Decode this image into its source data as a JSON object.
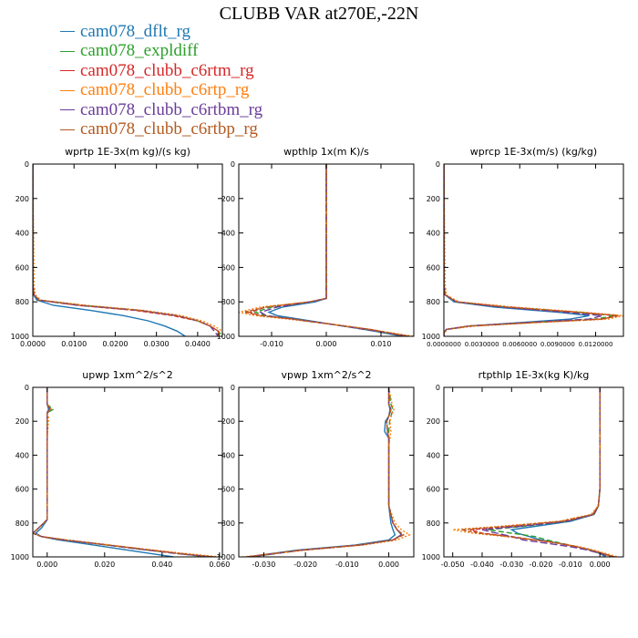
{
  "figure": {
    "title": "CLUBB VAR at270E,-22N"
  },
  "legend": [
    {
      "name": "cam078_dflt_rg",
      "color": "#1f77b4"
    },
    {
      "name": "cam078_expldiff",
      "color": "#2ca02c"
    },
    {
      "name": "cam078_clubb_c6rtm_rg",
      "color": "#d62728"
    },
    {
      "name": "cam078_clubb_c6rtp_rg",
      "color": "#ff7f0e"
    },
    {
      "name": "cam078_clubb_c6rtbm_rg",
      "color": "#6a3d9a"
    },
    {
      "name": "cam078_clubb_c6rtbp_rg",
      "color": "#b35a1f"
    }
  ],
  "chart_data": [
    {
      "type": "line",
      "title": "wprtp  1E-3x(m kg)/(s kg)",
      "xlim": [
        0,
        0.046
      ],
      "ylim": [
        1000,
        0
      ],
      "xticks": [
        0,
        0.01,
        0.02,
        0.03,
        0.04
      ],
      "xtick_labels": [
        "0.0000",
        "0.0100",
        "0.0200",
        "0.0300",
        "0.0400"
      ],
      "yticks": [
        0,
        200,
        400,
        600,
        800,
        1000
      ],
      "y": [
        0,
        700,
        760,
        790,
        820,
        850,
        880,
        910,
        940,
        970,
        1000
      ],
      "series": [
        {
          "name": "cam078_dflt_rg",
          "values": [
            0,
            0,
            0.0002,
            0.001,
            0.005,
            0.014,
            0.022,
            0.028,
            0.032,
            0.035,
            0.037
          ]
        },
        {
          "name": "cam078_expldiff",
          "values": [
            0,
            0,
            0.0003,
            0.0015,
            0.012,
            0.026,
            0.035,
            0.04,
            0.043,
            0.045,
            0.046
          ]
        },
        {
          "name": "cam078_clubb_c6rtm_rg",
          "values": [
            0,
            0,
            0.0003,
            0.0015,
            0.011,
            0.025,
            0.034,
            0.04,
            0.043,
            0.045,
            0.045
          ]
        },
        {
          "name": "cam078_clubb_c6rtp_rg",
          "values": [
            0,
            0.0003,
            0.0006,
            0.002,
            0.013,
            0.027,
            0.036,
            0.041,
            0.044,
            0.046,
            0.046
          ]
        },
        {
          "name": "cam078_clubb_c6rtbm_rg",
          "values": [
            0,
            0,
            0.0003,
            0.0015,
            0.011,
            0.026,
            0.035,
            0.04,
            0.043,
            0.044,
            0.045
          ]
        },
        {
          "name": "cam078_clubb_c6rtbp_rg",
          "values": [
            0,
            0,
            0.0003,
            0.0015,
            0.012,
            0.026,
            0.035,
            0.04,
            0.043,
            0.045,
            0.045
          ]
        }
      ]
    },
    {
      "type": "line",
      "title": "wpthlp  1x(m K)/s",
      "xlim": [
        -0.016,
        0.016
      ],
      "ylim": [
        1000,
        0
      ],
      "xticks": [
        -0.01,
        0,
        0.01
      ],
      "xtick_labels": [
        "-0.010",
        "0.000",
        "0.010"
      ],
      "yticks": [
        0,
        200,
        400,
        600,
        800,
        1000
      ],
      "y": [
        0,
        700,
        780,
        800,
        830,
        860,
        880,
        900,
        930,
        960,
        1000
      ],
      "series": [
        {
          "name": "cam078_dflt_rg",
          "values": [
            0,
            0,
            0,
            -0.002,
            -0.008,
            -0.0105,
            -0.009,
            -0.005,
            0.001,
            0.007,
            0.014
          ]
        },
        {
          "name": "cam078_expldiff",
          "values": [
            0,
            0,
            0,
            -0.003,
            -0.01,
            -0.013,
            -0.011,
            -0.006,
            0.001,
            0.007,
            0.015
          ]
        },
        {
          "name": "cam078_clubb_c6rtm_rg",
          "values": [
            0,
            0,
            0,
            -0.003,
            -0.011,
            -0.014,
            -0.012,
            -0.006,
            0.001,
            0.008,
            0.015
          ]
        },
        {
          "name": "cam078_clubb_c6rtp_rg",
          "values": [
            0,
            0,
            0,
            -0.003,
            -0.012,
            -0.016,
            -0.013,
            -0.007,
            0.001,
            0.008,
            0.016
          ]
        },
        {
          "name": "cam078_clubb_c6rtbm_rg",
          "values": [
            0,
            0,
            0,
            -0.003,
            -0.009,
            -0.012,
            -0.011,
            -0.006,
            0.001,
            0.007,
            0.015
          ]
        },
        {
          "name": "cam078_clubb_c6rtbp_rg",
          "values": [
            0,
            0,
            0,
            -0.003,
            -0.011,
            -0.015,
            -0.012,
            -0.006,
            0.001,
            0.008,
            0.015
          ]
        }
      ]
    },
    {
      "type": "line",
      "title": "wprcp  1E-3x(m/s) (kg/kg)",
      "xlim": [
        0,
        0.0142
      ],
      "ylim": [
        1000,
        0
      ],
      "xticks": [
        0,
        0.003,
        0.006,
        0.009,
        0.012
      ],
      "xtick_labels": [
        "0.0000000",
        "0.0030000",
        "0.0060000",
        "0.0090000",
        "0.0120000"
      ],
      "yticks": [
        0,
        200,
        400,
        600,
        800,
        1000
      ],
      "y": [
        0,
        700,
        760,
        800,
        830,
        860,
        880,
        900,
        920,
        940,
        960,
        980,
        1000
      ],
      "series": [
        {
          "name": "cam078_dflt_rg",
          "values": [
            0,
            0,
            0.0001,
            0.0008,
            0.004,
            0.009,
            0.0115,
            0.01,
            0.006,
            0.002,
            0.0002,
            0,
            0
          ]
        },
        {
          "name": "cam078_expldiff",
          "values": [
            0,
            0,
            0.0001,
            0.001,
            0.005,
            0.0105,
            0.0135,
            0.012,
            0.007,
            0.002,
            0.0002,
            0,
            0
          ]
        },
        {
          "name": "cam078_clubb_c6rtm_rg",
          "values": [
            0,
            0,
            0.0001,
            0.001,
            0.005,
            0.0105,
            0.0138,
            0.0125,
            0.007,
            0.002,
            0.0002,
            0,
            0
          ]
        },
        {
          "name": "cam078_clubb_c6rtp_rg",
          "values": [
            0,
            0.0001,
            0.0002,
            0.0012,
            0.0055,
            0.011,
            0.0142,
            0.013,
            0.0075,
            0.0025,
            0.0003,
            0,
            0
          ]
        },
        {
          "name": "cam078_clubb_c6rtbm_rg",
          "values": [
            0,
            0,
            0.0001,
            0.001,
            0.0045,
            0.0095,
            0.0125,
            0.0115,
            0.0065,
            0.002,
            0.0002,
            0,
            0
          ]
        },
        {
          "name": "cam078_clubb_c6rtbp_rg",
          "values": [
            0,
            0,
            0.0001,
            0.001,
            0.005,
            0.0105,
            0.0138,
            0.0125,
            0.007,
            0.002,
            0.0002,
            0,
            0
          ]
        }
      ]
    },
    {
      "type": "line",
      "title": "upwp  1xm^2/s^2",
      "xlim": [
        -0.005,
        0.061
      ],
      "ylim": [
        1000,
        0
      ],
      "xticks": [
        0,
        0.02,
        0.04,
        0.06
      ],
      "xtick_labels": [
        "0.000",
        "0.020",
        "0.040",
        "0.060"
      ],
      "yticks": [
        0,
        200,
        400,
        600,
        800,
        1000
      ],
      "y": [
        0,
        100,
        130,
        150,
        180,
        300,
        600,
        780,
        830,
        860,
        880,
        900,
        920,
        950,
        980,
        1000
      ],
      "series": [
        {
          "name": "cam078_dflt_rg",
          "values": [
            0,
            0,
            0.0005,
            0,
            0,
            0,
            0,
            0,
            -0.002,
            -0.004,
            -0.002,
            0.004,
            0.012,
            0.024,
            0.036,
            0.044
          ]
        },
        {
          "name": "cam078_expldiff",
          "values": [
            0,
            0,
            0.002,
            0,
            0,
            0,
            0,
            0,
            -0.003,
            -0.005,
            -0.002,
            0.006,
            0.016,
            0.03,
            0.045,
            0.056
          ]
        },
        {
          "name": "cam078_clubb_c6rtm_rg",
          "values": [
            0,
            0,
            0.001,
            0,
            0,
            0,
            0,
            0,
            -0.003,
            -0.005,
            -0.002,
            0.006,
            0.016,
            0.031,
            0.046,
            0.058
          ]
        },
        {
          "name": "cam078_clubb_c6rtp_rg",
          "values": [
            0,
            0,
            0.0015,
            0,
            0.0005,
            0,
            0,
            0,
            -0.003,
            -0.005,
            -0.002,
            0.007,
            0.017,
            0.032,
            0.048,
            0.06
          ]
        },
        {
          "name": "cam078_clubb_c6rtbm_rg",
          "values": [
            0,
            0,
            0.001,
            0,
            0,
            0,
            0,
            0,
            -0.003,
            -0.005,
            -0.002,
            0.006,
            0.016,
            0.03,
            0.045,
            0.057
          ]
        },
        {
          "name": "cam078_clubb_c6rtbp_rg",
          "values": [
            0,
            0,
            0.001,
            0,
            0,
            0,
            0,
            0,
            -0.003,
            -0.005,
            -0.002,
            0.006,
            0.016,
            0.031,
            0.046,
            0.058
          ]
        }
      ]
    },
    {
      "type": "line",
      "title": "vpwp  1xm^2/s^2",
      "xlim": [
        -0.036,
        0.006
      ],
      "ylim": [
        1000,
        0
      ],
      "xticks": [
        -0.03,
        -0.02,
        -0.01,
        0
      ],
      "xtick_labels": [
        "-0.030",
        "-0.020",
        "-0.010",
        "0.000"
      ],
      "yticks": [
        0,
        200,
        400,
        600,
        800,
        1000
      ],
      "y": [
        0,
        100,
        130,
        170,
        200,
        260,
        300,
        350,
        500,
        700,
        800,
        840,
        870,
        900,
        930,
        960,
        1000
      ],
      "series": [
        {
          "name": "cam078_dflt_rg",
          "values": [
            0,
            0,
            0.0003,
            0,
            -0.0008,
            -0.001,
            0,
            0,
            0,
            0,
            0.0005,
            0.001,
            0.0015,
            0,
            -0.008,
            -0.022,
            -0.034
          ]
        },
        {
          "name": "cam078_expldiff",
          "values": [
            0,
            0.0005,
            0.001,
            0.0005,
            0.0002,
            0,
            0,
            0,
            0,
            0,
            0.001,
            0.002,
            0.003,
            0.001,
            -0.007,
            -0.021,
            -0.033
          ]
        },
        {
          "name": "cam078_clubb_c6rtm_rg",
          "values": [
            0,
            0,
            0.0005,
            0,
            -0.0005,
            -0.0003,
            0,
            0,
            0,
            0,
            0.001,
            0.002,
            0.0035,
            0.001,
            -0.007,
            -0.021,
            -0.034
          ]
        },
        {
          "name": "cam078_clubb_c6rtp_rg",
          "values": [
            0,
            0.0008,
            0.0012,
            0.0006,
            0.0003,
            0.0005,
            0.0003,
            0,
            0,
            0,
            0.0015,
            0.003,
            0.005,
            0.002,
            -0.006,
            -0.02,
            -0.035
          ]
        },
        {
          "name": "cam078_clubb_c6rtbm_rg",
          "values": [
            0,
            0,
            0.0005,
            0,
            -0.0005,
            -0.0003,
            0,
            0,
            0,
            0,
            0.001,
            0.002,
            0.003,
            0.001,
            -0.007,
            -0.021,
            -0.033
          ]
        },
        {
          "name": "cam078_clubb_c6rtbp_rg",
          "values": [
            0,
            0,
            0.0005,
            0,
            -0.0005,
            -0.0003,
            0,
            0,
            0,
            0,
            0.001,
            0.002,
            0.0035,
            0.001,
            -0.007,
            -0.021,
            -0.034
          ]
        }
      ]
    },
    {
      "type": "line",
      "title": "rtpthlp  1E-3x(kg K)/kg",
      "xlim": [
        -0.053,
        0.008
      ],
      "ylim": [
        1000,
        0
      ],
      "xticks": [
        -0.05,
        -0.04,
        -0.03,
        -0.02,
        -0.01,
        0
      ],
      "xtick_labels": [
        "-0.050",
        "-0.040",
        "-0.030",
        "-0.020",
        "-0.010",
        "0.000"
      ],
      "yticks": [
        0,
        200,
        400,
        600,
        800,
        1000
      ],
      "y": [
        0,
        600,
        700,
        750,
        790,
        820,
        840,
        860,
        880,
        900,
        920,
        940,
        960,
        980,
        1000
      ],
      "series": [
        {
          "name": "cam078_dflt_rg",
          "values": [
            0,
            0,
            -0.0005,
            -0.002,
            -0.01,
            -0.022,
            -0.03,
            -0.028,
            -0.024,
            -0.02,
            -0.014,
            -0.008,
            -0.003,
            0,
            0.002
          ]
        },
        {
          "name": "cam078_expldiff",
          "values": [
            0,
            0,
            -0.0005,
            -0.002,
            -0.011,
            -0.026,
            -0.038,
            -0.03,
            -0.022,
            -0.018,
            -0.013,
            -0.008,
            -0.003,
            0.001,
            0.004
          ]
        },
        {
          "name": "cam078_clubb_c6rtm_rg",
          "values": [
            0,
            0,
            -0.0005,
            -0.0025,
            -0.012,
            -0.03,
            -0.044,
            -0.04,
            -0.03,
            -0.022,
            -0.014,
            -0.008,
            -0.003,
            0.001,
            0.005
          ]
        },
        {
          "name": "cam078_clubb_c6rtp_rg",
          "values": [
            0,
            0,
            -0.0006,
            -0.003,
            -0.014,
            -0.034,
            -0.05,
            -0.043,
            -0.032,
            -0.022,
            -0.014,
            -0.007,
            -0.002,
            0.002,
            0.006
          ]
        },
        {
          "name": "cam078_clubb_c6rtbm_rg",
          "values": [
            0,
            0,
            -0.0005,
            -0.002,
            -0.011,
            -0.027,
            -0.04,
            -0.035,
            -0.03,
            -0.026,
            -0.018,
            -0.01,
            -0.004,
            0,
            0.004
          ]
        },
        {
          "name": "cam078_clubb_c6rtbp_rg",
          "values": [
            0,
            0,
            -0.0005,
            -0.0025,
            -0.013,
            -0.032,
            -0.047,
            -0.041,
            -0.031,
            -0.022,
            -0.014,
            -0.008,
            -0.003,
            0.001,
            0.005
          ]
        }
      ]
    }
  ]
}
